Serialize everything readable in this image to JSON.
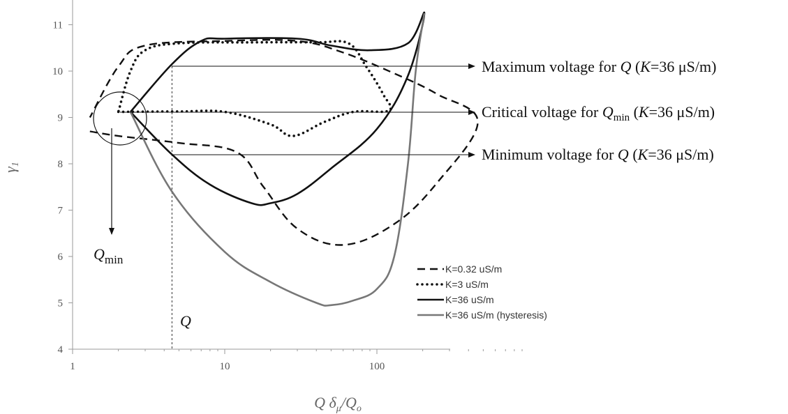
{
  "chart_data": {
    "type": "line",
    "xlabel": {
      "q": "Q",
      "delta": "δ",
      "delta_sub": "μ",
      "slash": "/",
      "q2": "Q",
      "q2_sub": "o"
    },
    "ylabel": {
      "base": "γ",
      "sub": "1"
    },
    "x_scale": "log",
    "xlim": [
      1,
      1000
    ],
    "ylim": [
      4,
      11.5
    ],
    "xticks": [
      1,
      10,
      100
    ],
    "xtick_labels": [
      "1",
      "10",
      "100"
    ],
    "yticks": [
      4,
      5,
      6,
      7,
      8,
      9,
      10,
      11
    ],
    "ytick_labels": [
      "4",
      "5",
      "6",
      "7",
      "8",
      "9",
      "10",
      "11"
    ],
    "grid": false,
    "legend_position": "bottom-right",
    "series": [
      {
        "name": "K=0.32 uS/m",
        "color": "#111111",
        "dash": "dashed",
        "x": [
          1.3,
          2.0,
          5.0,
          12.0,
          18.0,
          30.0,
          60.0,
          130.0,
          250.0,
          460.0,
          250.0,
          130.0,
          60.0,
          30.0,
          10.0,
          3.0,
          2.0,
          1.3
        ],
        "y": [
          8.7,
          8.6,
          8.45,
          8.25,
          7.5,
          6.6,
          6.25,
          6.7,
          7.6,
          8.9,
          9.5,
          9.95,
          10.4,
          10.65,
          10.65,
          10.55,
          10.1,
          9.0
        ]
      },
      {
        "name": "K=3 uS/m",
        "color": "#111111",
        "dash": "dotted",
        "x": [
          2.0,
          5.0,
          10.0,
          20.0,
          28.0,
          45.0,
          70.0,
          120.0,
          110.0,
          85.0,
          65.0,
          40.0,
          15.0,
          5.0,
          3.0,
          2.4,
          2.0
        ],
        "y": [
          9.12,
          9.13,
          9.12,
          8.85,
          8.6,
          8.9,
          9.12,
          9.15,
          9.5,
          10.1,
          10.6,
          10.62,
          10.62,
          10.6,
          10.45,
          10.0,
          9.12
        ]
      },
      {
        "name": "K=36 uS/m",
        "color": "#111111",
        "dash": "solid",
        "x": [
          2.4,
          4.5,
          8.0,
          15.0,
          20.0,
          30.0,
          50.0,
          100.0,
          160.0,
          205.0,
          160.0,
          90.0,
          50.0,
          30.0,
          10.0,
          7.0,
          4.5,
          2.4
        ],
        "y": [
          9.12,
          8.2,
          7.55,
          7.15,
          7.15,
          7.35,
          7.9,
          8.75,
          9.9,
          11.25,
          10.6,
          10.45,
          10.55,
          10.7,
          10.7,
          10.65,
          10.15,
          9.12
        ]
      },
      {
        "name": "K=36 uS/m (hysteresis)",
        "color": "#777777",
        "dash": "solid",
        "x": [
          2.4,
          4.5,
          10.0,
          20.0,
          40.0,
          50.0,
          70.0,
          100.0,
          130.0,
          160.0,
          180.0,
          205.0
        ],
        "y": [
          9.12,
          7.4,
          6.1,
          5.45,
          5.0,
          4.95,
          5.05,
          5.3,
          6.0,
          8.0,
          10.0,
          11.25
        ]
      }
    ],
    "annotations": {
      "max_voltage": {
        "pre": "Maximum voltage for ",
        "q": "Q",
        "post1": " (",
        "k": "K",
        "post2": "=36 μS/m)"
      },
      "critical_voltage": {
        "pre": "Critical voltage for ",
        "q": "Q",
        "sub": "min",
        "post1": " (",
        "k": "K",
        "post2": "=36 μS/m)"
      },
      "min_voltage": {
        "pre": "Minimum voltage for ",
        "q": "Q",
        "post1": " (",
        "k": "K",
        "post2": "=36 μS/m)"
      },
      "qmin_label": {
        "q": "Q",
        "sub": "min"
      },
      "q_marker": {
        "text": "Q",
        "x": 4.5
      }
    }
  }
}
